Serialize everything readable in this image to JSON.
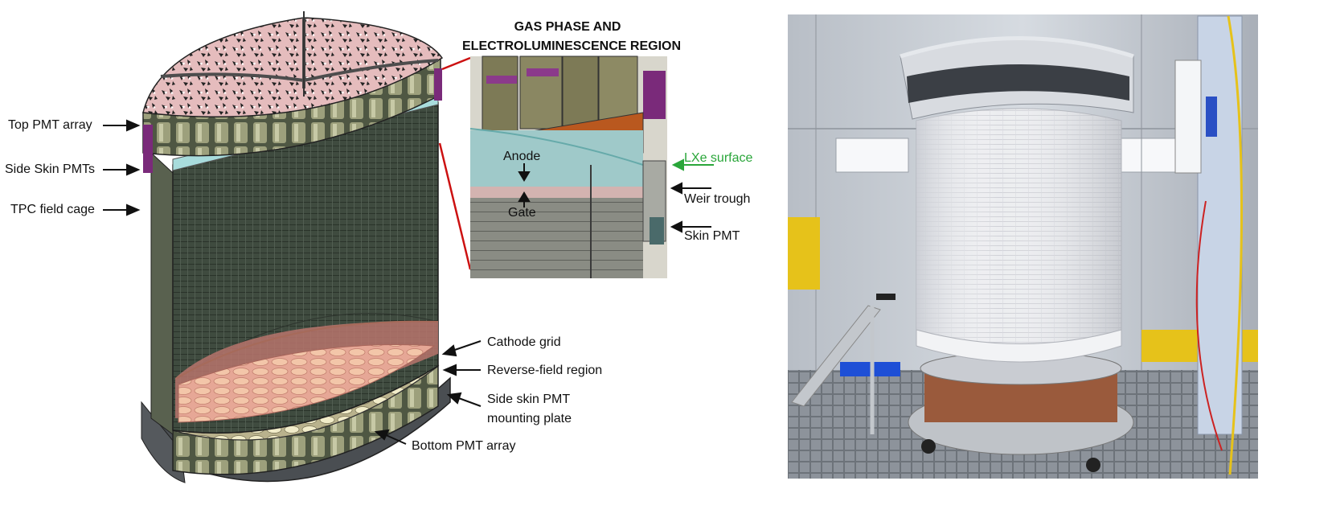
{
  "inset": {
    "title_line1": "GAS PHASE AND",
    "title_line2": "ELECTROLUMINESCENCE REGION",
    "labels": {
      "anode": "Anode",
      "gate": "Gate",
      "lxe_surface": "LXe surface",
      "weir_trough": "Weir trough",
      "skin_pmt": "Skin PMT"
    }
  },
  "labels": {
    "top_pmt_array": "Top PMT array",
    "side_skin_pmts": "Side Skin PMTs",
    "tpc_field_cage": "TPC field cage",
    "cathode_grid": "Cathode grid",
    "reverse_field_region": "Reverse-field region",
    "side_skin_mount_line1": "Side skin PMT",
    "side_skin_mount_line2": "mounting plate",
    "bottom_pmt_array": "Bottom PMT array"
  },
  "colors": {
    "label_text": "#111111",
    "lxe_surface_label": "#2aa63a",
    "inset_callout_lines": "#cc1111",
    "field_cage": "#3e4a3e",
    "top_array_fill": "#e8bfc0"
  }
}
